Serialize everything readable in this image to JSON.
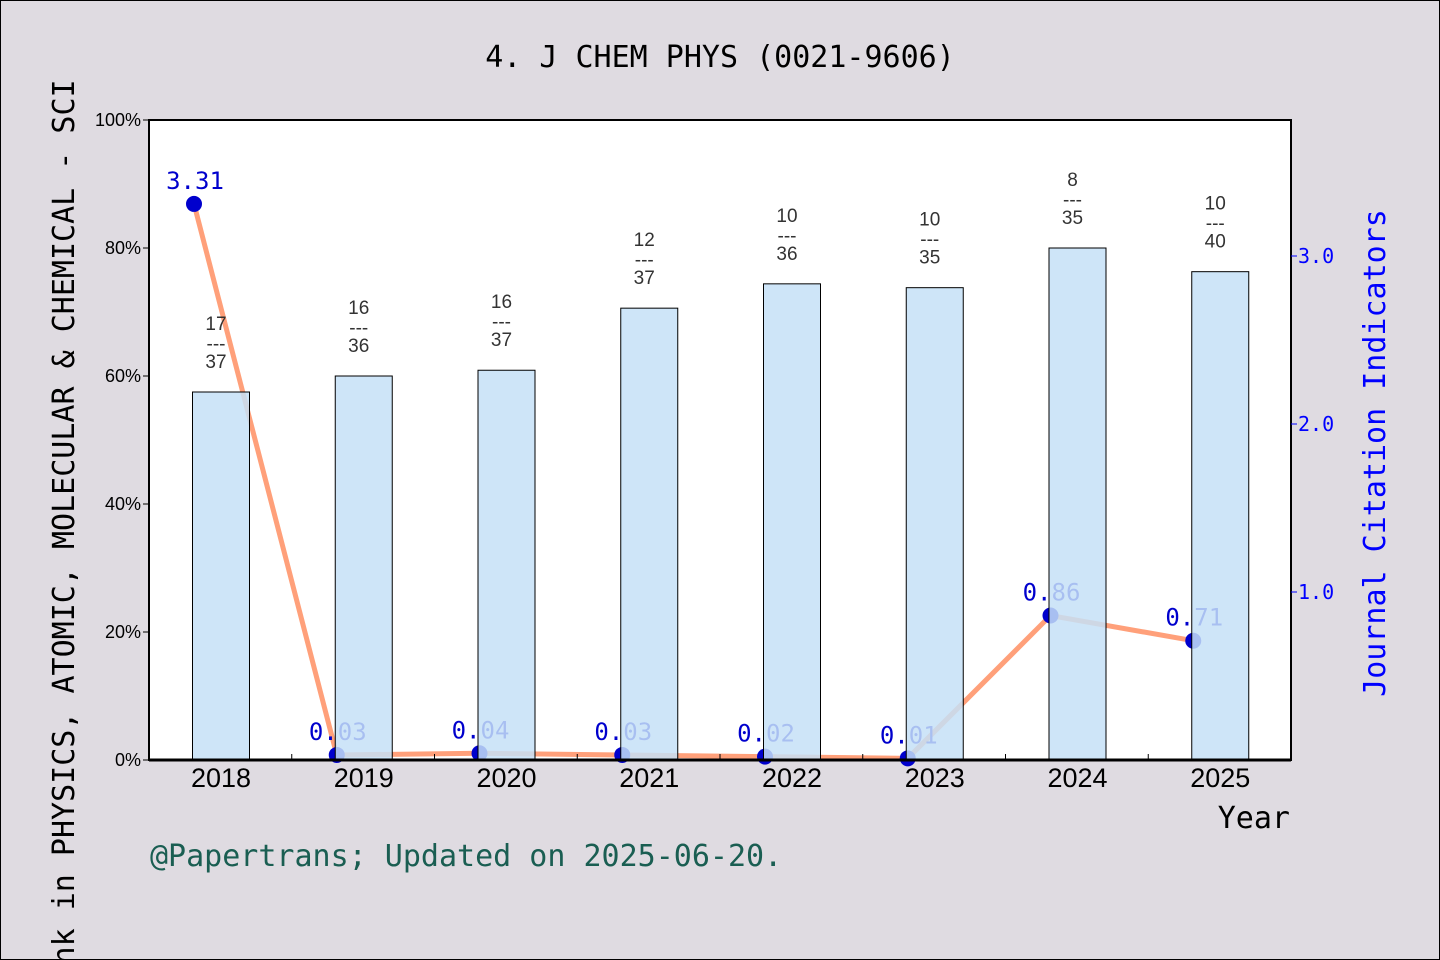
{
  "chart_data": {
    "type": "bar+line",
    "title": "4. J CHEM PHYS (0021-9606)",
    "xlabel": "Year",
    "ylabel_left": "Rank in PHYSICS, ATOMIC, MOLECULAR & CHEMICAL - SCI",
    "ylabel_right": "Journal Citation Indicators",
    "categories": [
      "2018",
      "2019",
      "2020",
      "2021",
      "2022",
      "2023",
      "2024",
      "2025"
    ],
    "left_axis": {
      "ylim": [
        0,
        100
      ],
      "ticks": [
        "0%",
        "20%",
        "40%",
        "60%",
        "80%",
        "100%"
      ]
    },
    "right_axis": {
      "ylim": [
        0,
        3.81
      ],
      "ticks": [
        "1.0",
        "2.0",
        "3.0"
      ]
    },
    "bars": {
      "values_percent": [
        57.5,
        60.0,
        60.9,
        70.6,
        74.4,
        73.8,
        80.0,
        76.3
      ],
      "rank_labels": [
        {
          "rank": "17",
          "sep": "---",
          "total": "37"
        },
        {
          "rank": "16",
          "sep": "---",
          "total": "36"
        },
        {
          "rank": "16",
          "sep": "---",
          "total": "37"
        },
        {
          "rank": "12",
          "sep": "---",
          "total": "37"
        },
        {
          "rank": "10",
          "sep": "---",
          "total": "36"
        },
        {
          "rank": "10",
          "sep": "---",
          "total": "35"
        },
        {
          "rank": "8",
          "sep": "---",
          "total": "35"
        },
        {
          "rank": "10",
          "sep": "---",
          "total": "40"
        }
      ],
      "color": "#c5e0f7"
    },
    "line": {
      "values": [
        3.31,
        0.03,
        0.04,
        0.03,
        0.02,
        0.01,
        0.86,
        0.71
      ],
      "labels": [
        "3.31",
        "0.03",
        "0.04",
        "0.03",
        "0.02",
        "0.01",
        "0.86",
        "0.71"
      ],
      "line_color": "#ffa07a",
      "point_color": "#0000cd"
    },
    "grid": false,
    "footer": "@Papertrans; Updated on 2025-06-20."
  }
}
